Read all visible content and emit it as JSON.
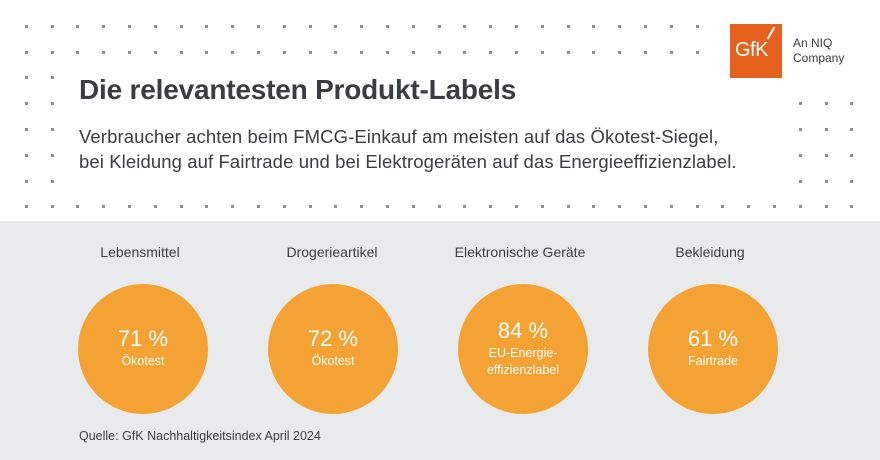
{
  "header": {
    "title": "Die relevantesten Produkt-Labels",
    "subtitle_lines": [
      "Verbraucher achten beim FMCG-Einkauf am meisten auf das Ökotest-Siegel,",
      "bei Kleidung auf Fairtrade und bei Elektrogeräten auf das Energieeffizienzlabel."
    ]
  },
  "logo": {
    "wordmark": "GfK",
    "tagline_lines": [
      "An NIQ",
      "Company"
    ],
    "brand_color": "#e6601e"
  },
  "colors": {
    "circle": "#f4a233",
    "panel": "#e9eaec",
    "text": "#3a3d42"
  },
  "categories": [
    {
      "name": "Lebensmittel",
      "value": "71 %",
      "label_lines": [
        "Ökotest"
      ]
    },
    {
      "name": "Drogerieartikel",
      "value": "72 %",
      "label_lines": [
        "Ökotest"
      ]
    },
    {
      "name": "Elektronische Geräte",
      "value": "84 %",
      "label_lines": [
        "EU-Energie-",
        "effizienzlabel"
      ]
    },
    {
      "name": "Bekleidung",
      "value": "61 %",
      "label_lines": [
        "Fairtrade"
      ]
    }
  ],
  "footer": {
    "source": "Quelle: GfK Nachhaltigkeitsindex April 2024"
  }
}
